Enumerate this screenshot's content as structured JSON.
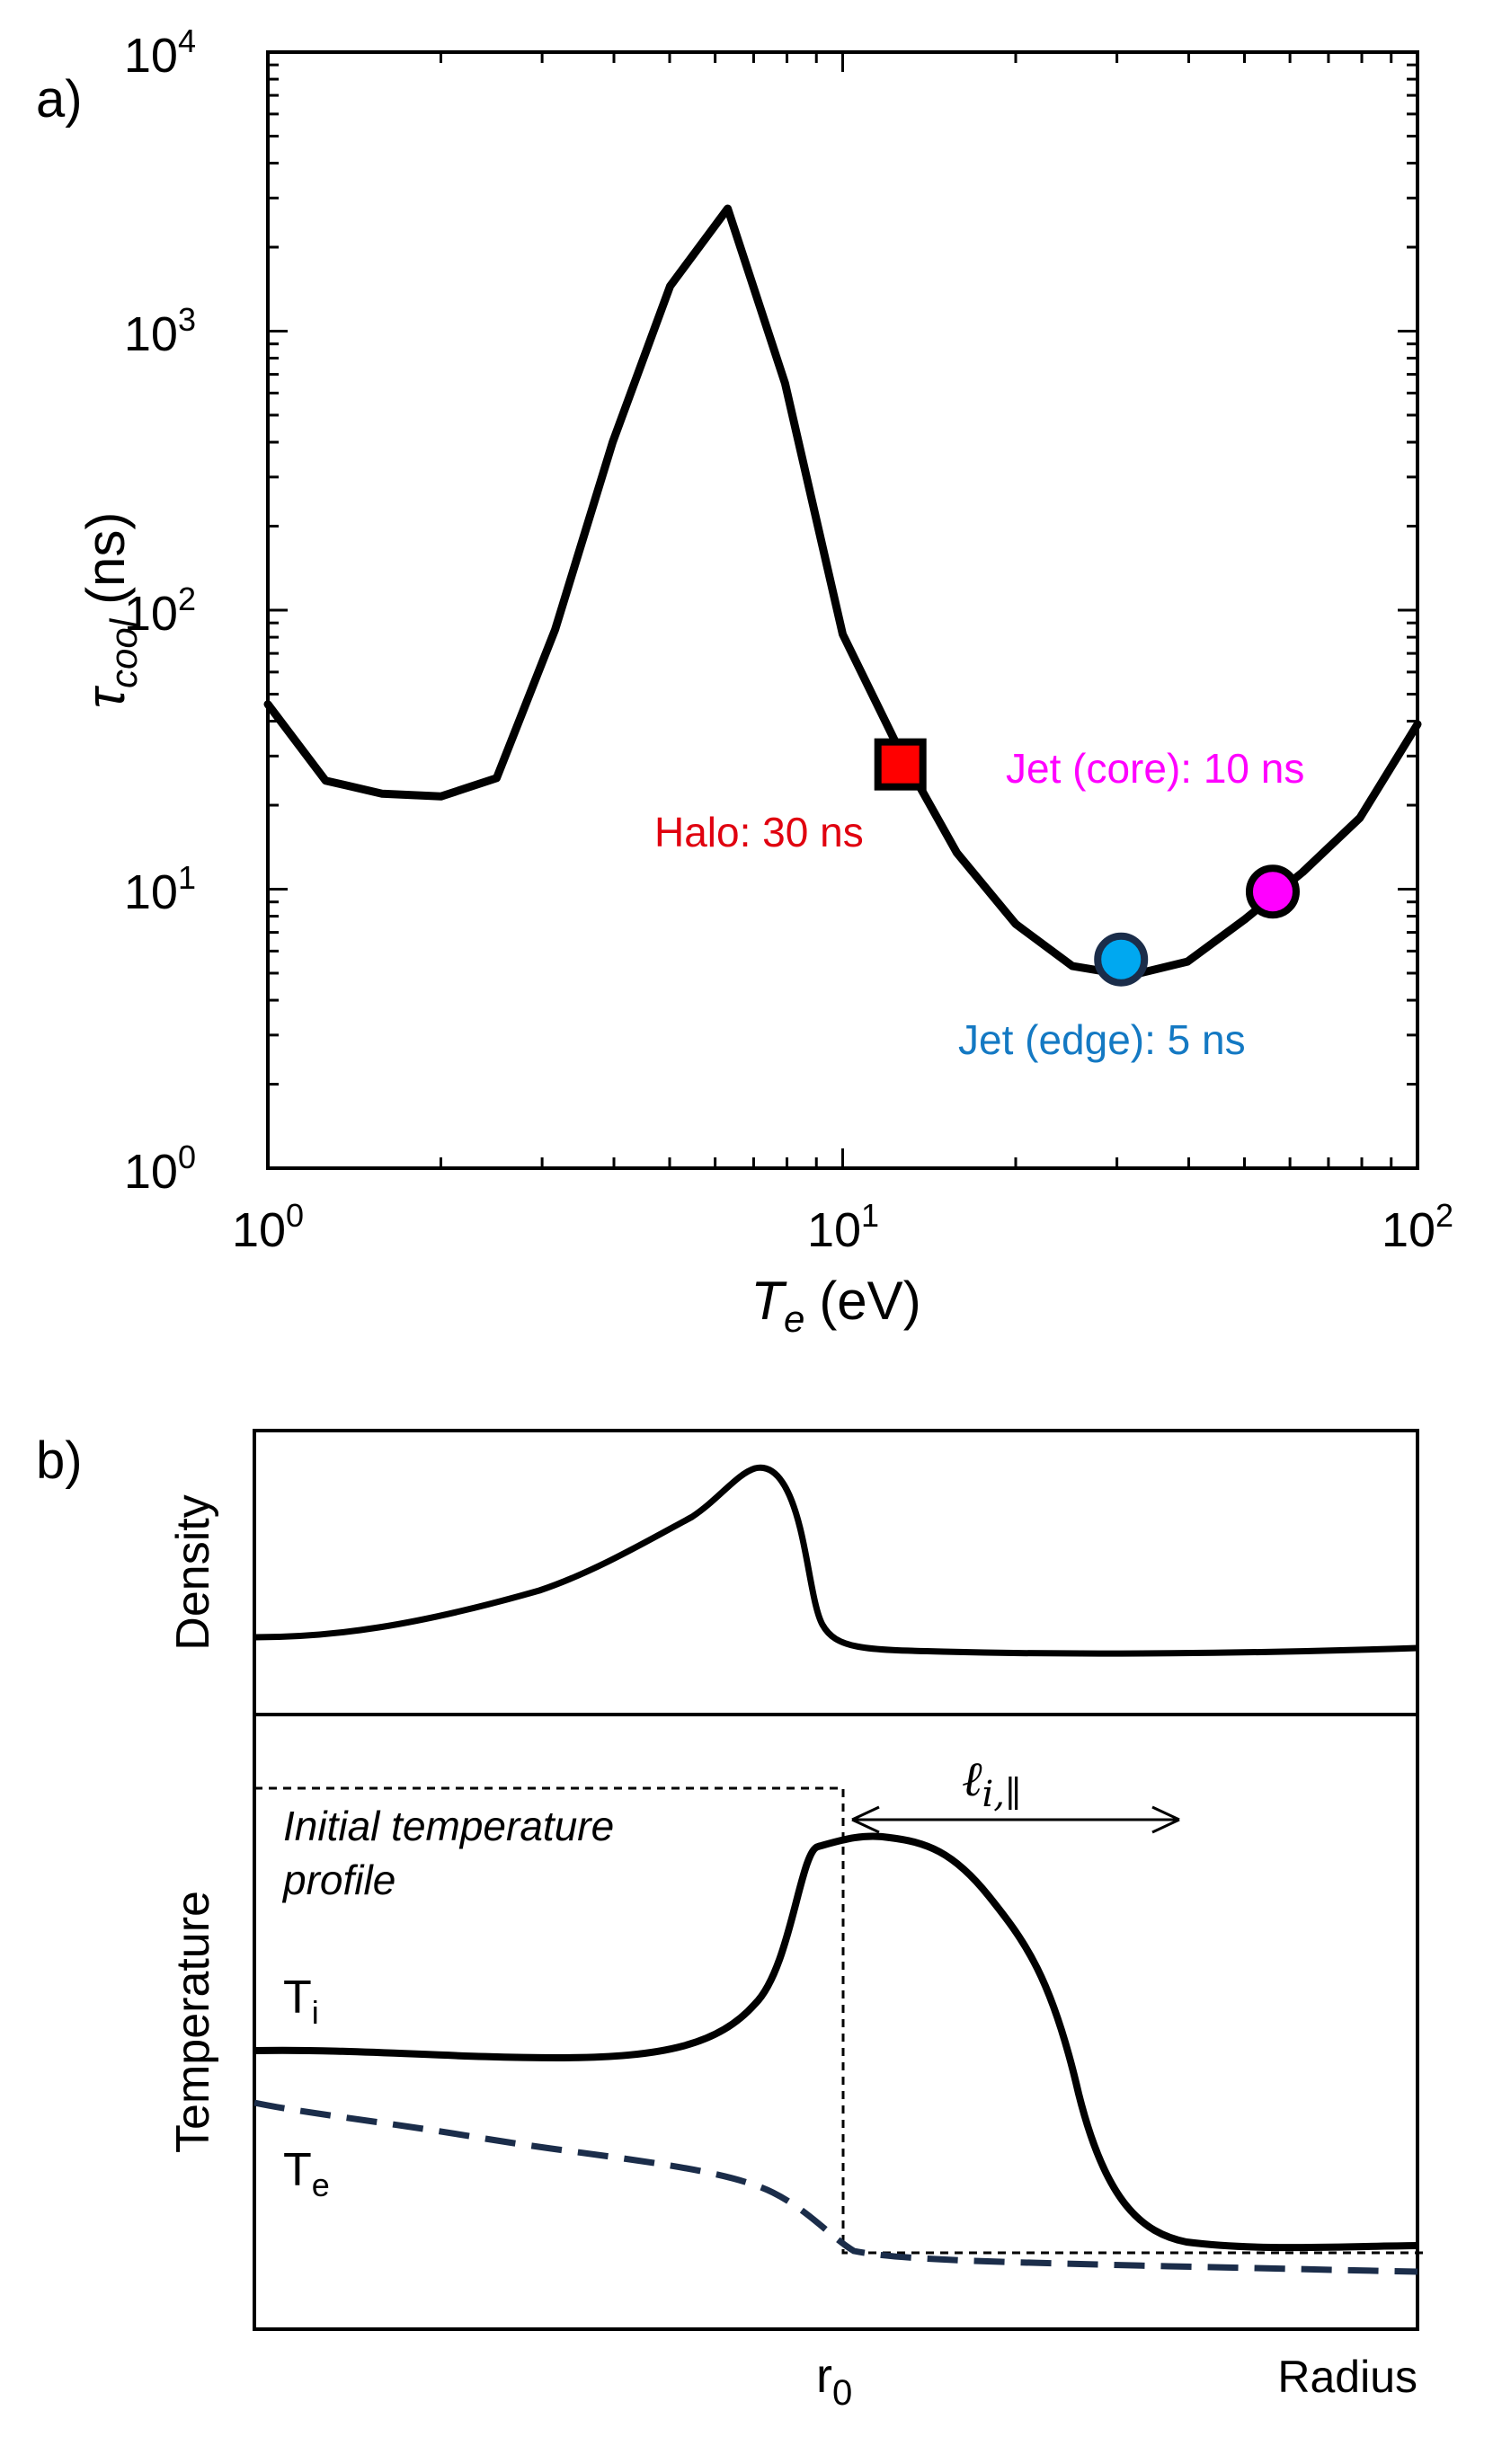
{
  "chart_data": [
    {
      "panel_label": "a)",
      "type": "line",
      "xlabel": "T",
      "xlabel_sub": "e",
      "xlabel_unit": "(eV)",
      "ylabel": "τ",
      "ylabel_sub": "cool",
      "ylabel_unit": "(ns)",
      "xscale": "log",
      "yscale": "log",
      "xlim": [
        1,
        100
      ],
      "ylim": [
        1,
        10000
      ],
      "xticks": [
        {
          "base": "10",
          "exp": "0"
        },
        {
          "base": "10",
          "exp": "1"
        },
        {
          "base": "10",
          "exp": "2"
        }
      ],
      "yticks": [
        {
          "base": "10",
          "exp": "0"
        },
        {
          "base": "10",
          "exp": "1"
        },
        {
          "base": "10",
          "exp": "2"
        },
        {
          "base": "10",
          "exp": "3"
        },
        {
          "base": "10",
          "exp": "4"
        }
      ],
      "series": [
        {
          "x": [
            1.0,
            1.26,
            1.58,
            2.0,
            2.5,
            3.16,
            3.98,
            5.01,
            6.31,
            7.94,
            10.0,
            12.6,
            15.8,
            20.0,
            25.1,
            31.6,
            39.8,
            50.1,
            63.1,
            79.4,
            100.0
          ],
          "y": [
            46,
            24.5,
            22,
            21.5,
            25,
            85,
            400,
            1450,
            2750,
            650,
            82,
            31,
            13.5,
            7.5,
            5.3,
            4.9,
            5.5,
            7.8,
            11.5,
            18,
            39
          ]
        }
      ],
      "markers": [
        {
          "label": "Halo: 30 ns",
          "x": 12.6,
          "y": 28,
          "shape": "square",
          "fill": "#ff0000",
          "text_color": "#e0000f"
        },
        {
          "label": "Jet (edge): 5 ns",
          "x": 30.5,
          "y": 5.6,
          "shape": "circle",
          "fill": "#00a8f0",
          "edge": "#1b2d4a",
          "text_color": "#1479c3"
        },
        {
          "label": "Jet (core): 10 ns",
          "x": 56,
          "y": 9.8,
          "shape": "circle",
          "fill": "#ff00ff",
          "edge": "#000000",
          "text_color": "#ff00ff"
        }
      ],
      "grid": false
    },
    {
      "panel_label": "b)",
      "type": "line",
      "xlabel": "Radius",
      "x_marker_label": "r",
      "x_marker_sub": "0",
      "panels": [
        {
          "ylabel": "Density"
        },
        {
          "ylabel": "Temperature"
        }
      ],
      "annotation": "Initial temperature profile",
      "annotation_line1": "Initial temperature",
      "annotation_line2": "profile",
      "arrow_label": "ℓ",
      "arrow_sub": "i,∥",
      "series_labels": [
        {
          "name": "T",
          "sub": "i",
          "style": "solid",
          "color": "#000000"
        },
        {
          "name": "T",
          "sub": "e",
          "style": "dashed",
          "color": "#1b2d4a"
        }
      ]
    }
  ]
}
